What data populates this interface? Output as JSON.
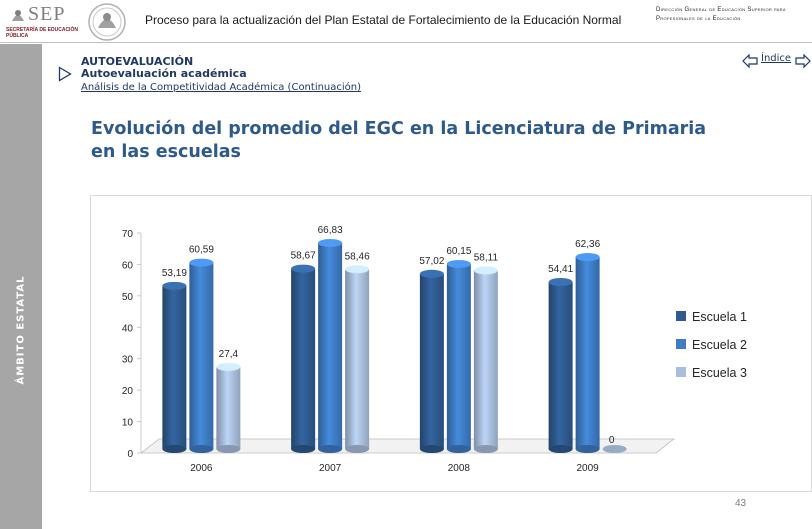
{
  "header": {
    "logo_text": "SEP",
    "logo_subtitle": "SECRETARÍA DE EDUCACIÓN PÚBLICA",
    "title": "Proceso para la actualización del Plan Estatal de Fortalecimiento de la Educación Normal",
    "direction": "Dirección General de Educación Superior para Profesionales de la Educación"
  },
  "sidebar": {
    "label": "ÁMBITO ESTATAL"
  },
  "section": {
    "title": "AUTOEVALUACIÓN",
    "subtitle": "Autoevaluación académica",
    "breadcrumb": "Análisis de la Competitividad Académica (Continuación)"
  },
  "nav": {
    "index_label": "Índice"
  },
  "heading": "Evolución del promedio del EGC en la Licenciatura de Primaria en las escuelas",
  "page_number": "43",
  "colors": {
    "series": [
      "#2e5a8f",
      "#3e7cc4",
      "#a9bedc"
    ],
    "text": "#1f3864"
  },
  "chart_data": {
    "type": "bar",
    "categories": [
      "2006",
      "2007",
      "2008",
      "2009"
    ],
    "series": [
      {
        "name": "Escuela 1",
        "values": [
          53.19,
          58.67,
          57.02,
          54.41
        ],
        "labels": [
          "53,19",
          "58,67",
          "57,02",
          "54,41"
        ]
      },
      {
        "name": "Escuela 2",
        "values": [
          60.59,
          66.83,
          60.15,
          62.36
        ],
        "labels": [
          "60,59",
          "66,83",
          "60,15",
          "62,36"
        ]
      },
      {
        "name": "Escuela 3",
        "values": [
          27.4,
          58.46,
          58.11,
          0
        ],
        "labels": [
          "27,4",
          "58,46",
          "58,11",
          "0"
        ]
      }
    ],
    "ylim": [
      0,
      70
    ],
    "yticks": [
      "0",
      "10",
      "20",
      "30",
      "40",
      "50",
      "60",
      "70"
    ],
    "title": "",
    "xlabel": "",
    "ylabel": "",
    "legend": "right",
    "grid": false
  }
}
